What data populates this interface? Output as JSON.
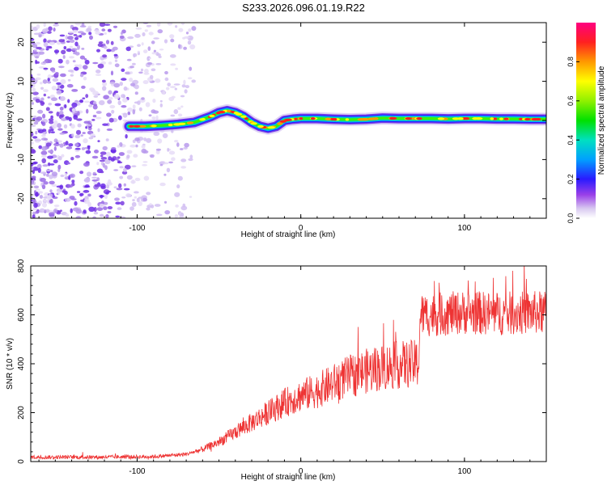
{
  "title": "S233.2026.096.01.19.R22",
  "chart_data": [
    {
      "type": "heatmap",
      "xlabel": "Height of straight line (km)",
      "ylabel": "Frequency (Hz)",
      "xlim": [
        -165,
        150
      ],
      "ylim": [
        -25,
        25
      ],
      "xticks": [
        -100,
        0,
        100
      ],
      "yticks": [
        -20,
        -10,
        0,
        10,
        20
      ],
      "colorbar": {
        "label": "Normalized spectral amplitude",
        "range": [
          0,
          1
        ],
        "ticks": [
          0.0,
          0.2,
          0.4,
          0.6,
          0.8
        ]
      },
      "ridge": {
        "x": [
          -105,
          -95,
          -85,
          -75,
          -65,
          -55,
          -50,
          -45,
          -40,
          -35,
          -30,
          -25,
          -20,
          -15,
          -10,
          -5,
          0,
          10,
          20,
          30,
          40,
          50,
          60,
          70,
          80,
          90,
          100,
          110,
          120,
          130,
          140,
          150
        ],
        "y": [
          -1.5,
          -1.5,
          -1.3,
          -1.0,
          -0.5,
          1.0,
          2.0,
          2.5,
          2.0,
          1.0,
          -0.5,
          -1.5,
          -2.0,
          -1.5,
          0,
          0.3,
          0.5,
          0.5,
          0.3,
          0.2,
          0.3,
          0.6,
          0.5,
          0.5,
          0.5,
          0.4,
          0.5,
          0.5,
          0.4,
          0.4,
          0.3,
          0.3
        ],
        "noise_region_x": [
          -165,
          -65
        ]
      }
    },
    {
      "type": "line",
      "xlabel": "Height of straight line (km)",
      "ylabel": "SNR (10 * v/v)",
      "xlim": [
        -165,
        150
      ],
      "ylim": [
        0,
        800
      ],
      "xticks": [
        -100,
        0,
        100
      ],
      "yticks": [
        0,
        200,
        400,
        600,
        800
      ],
      "color": "#ee3333",
      "trend": {
        "x": [
          -165,
          -120,
          -90,
          -70,
          -60,
          -50,
          -40,
          -30,
          -20,
          -10,
          0,
          10,
          20,
          30,
          40,
          50,
          60,
          72,
          73,
          80,
          100,
          120,
          150
        ],
        "y": [
          18,
          18,
          20,
          30,
          50,
          80,
          120,
          160,
          200,
          240,
          270,
          290,
          320,
          350,
          370,
          385,
          395,
          400,
          600,
          600,
          610,
          605,
          610
        ]
      }
    }
  ]
}
